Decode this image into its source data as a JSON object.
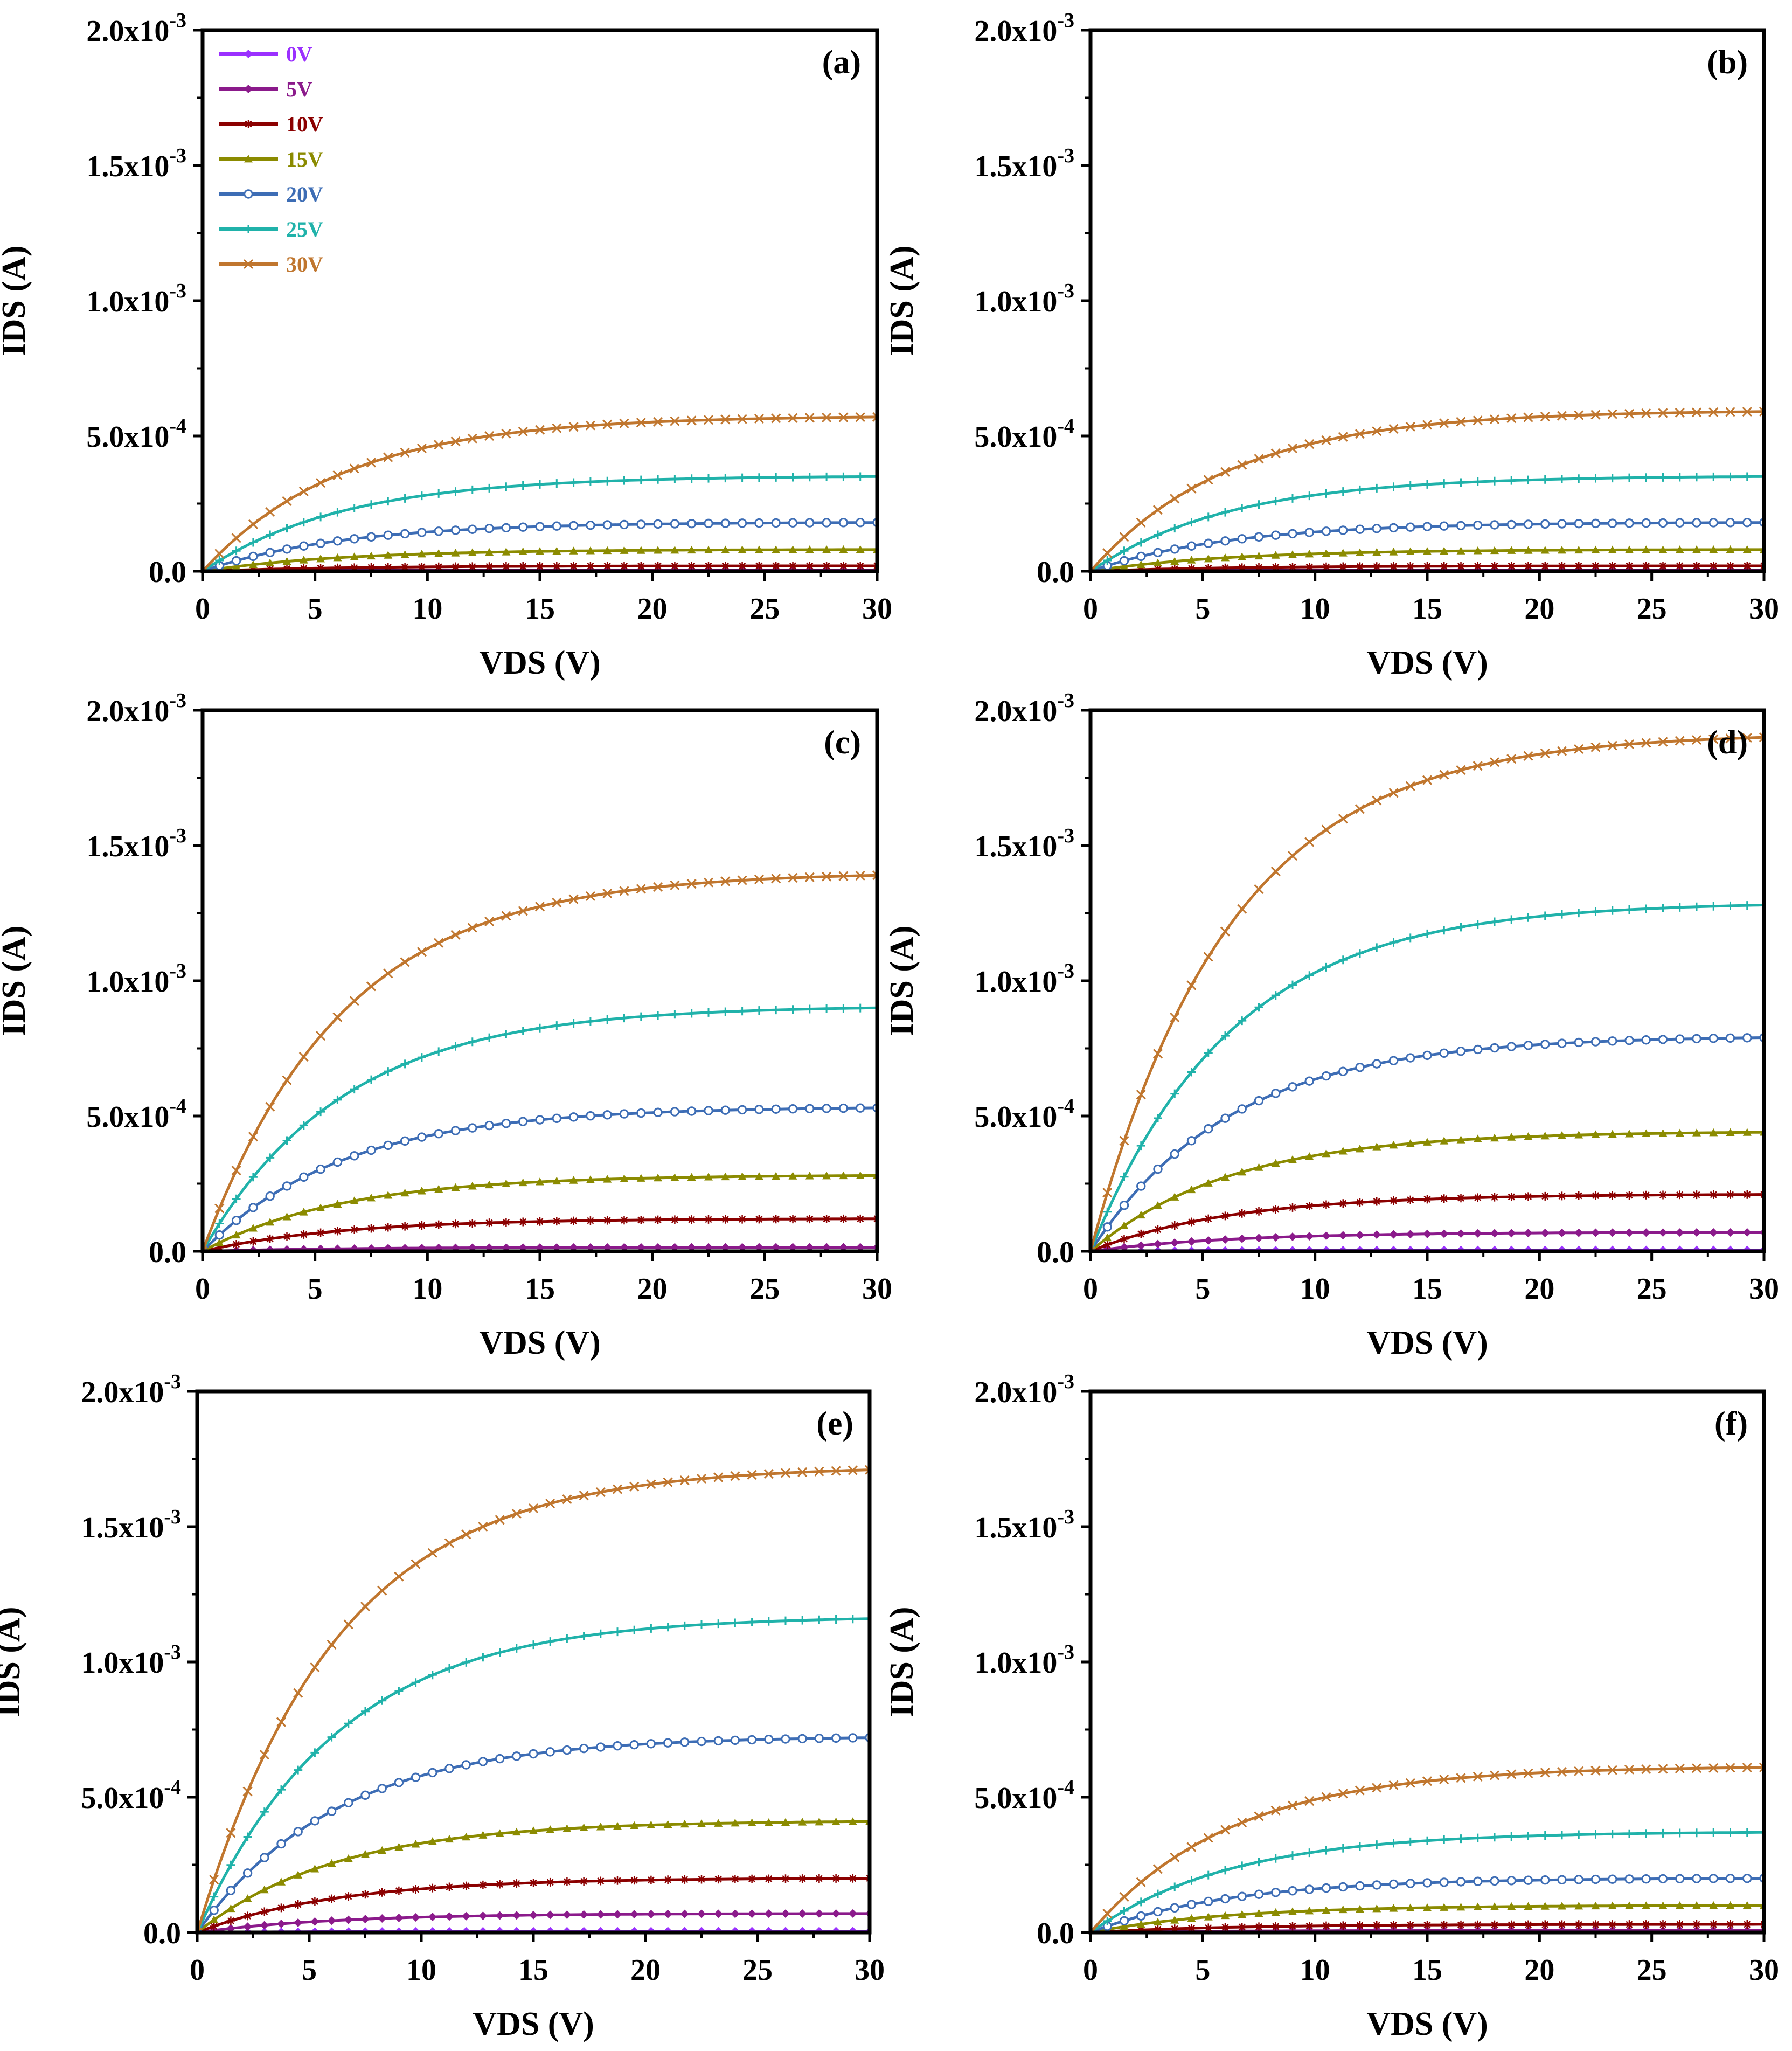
{
  "figure": {
    "series_names": [
      "0V",
      "5V",
      "10V",
      "15V",
      "20V",
      "25V",
      "30V"
    ],
    "series_colors": [
      "#9b30ff",
      "#8b1a8b",
      "#8b0000",
      "#8b8b00",
      "#3d6db5",
      "#20b2aa",
      "#c0762e"
    ],
    "series_markers": [
      "diamond",
      "diamond",
      "star",
      "triangle",
      "circle-open",
      "plus",
      "cross"
    ]
  },
  "chart_data": [
    {
      "type": "line",
      "panel_label": "(a)",
      "xlabel": "VDS (V)",
      "ylabel": "IDS (A)",
      "xlim": [
        0,
        30
      ],
      "ylim": [
        0,
        0.002
      ],
      "x_ticks": [
        "0",
        "5",
        "10",
        "15",
        "20",
        "25",
        "30"
      ],
      "y_ticks": [
        {
          "mant": "0.0",
          "exp": ""
        },
        {
          "mant": "5.0x10",
          "exp": "-4"
        },
        {
          "mant": "1.0x10",
          "exp": "-3"
        },
        {
          "mant": "1.5x10",
          "exp": "-3"
        },
        {
          "mant": "2.0x10",
          "exp": "-3"
        }
      ],
      "legend": true,
      "series": [
        {
          "name": "0V",
          "saturation": 0.0
        },
        {
          "name": "5V",
          "saturation": 5e-06
        },
        {
          "name": "10V",
          "saturation": 2e-05
        },
        {
          "name": "15V",
          "saturation": 8e-05
        },
        {
          "name": "20V",
          "saturation": 0.00018
        },
        {
          "name": "25V",
          "saturation": 0.00035
        },
        {
          "name": "30V",
          "saturation": 0.00057
        }
      ]
    },
    {
      "type": "line",
      "panel_label": "(b)",
      "xlabel": "VDS (V)",
      "ylabel": "IDS (A)",
      "xlim": [
        0,
        30
      ],
      "ylim": [
        0,
        0.002
      ],
      "x_ticks": [
        "0",
        "5",
        "10",
        "15",
        "20",
        "25",
        "30"
      ],
      "y_ticks": [
        {
          "mant": "0.0",
          "exp": ""
        },
        {
          "mant": "5.0x10",
          "exp": "-4"
        },
        {
          "mant": "1.0x10",
          "exp": "-3"
        },
        {
          "mant": "1.5x10",
          "exp": "-3"
        },
        {
          "mant": "2.0x10",
          "exp": "-3"
        }
      ],
      "legend": false,
      "series": [
        {
          "name": "0V",
          "saturation": 0.0
        },
        {
          "name": "5V",
          "saturation": 5e-06
        },
        {
          "name": "10V",
          "saturation": 2e-05
        },
        {
          "name": "15V",
          "saturation": 8e-05
        },
        {
          "name": "20V",
          "saturation": 0.00018
        },
        {
          "name": "25V",
          "saturation": 0.00035
        },
        {
          "name": "30V",
          "saturation": 0.00059
        }
      ]
    },
    {
      "type": "line",
      "panel_label": "(c)",
      "xlabel": "VDS (V)",
      "ylabel": "IDS (A)",
      "xlim": [
        0,
        30
      ],
      "ylim": [
        0,
        0.002
      ],
      "x_ticks": [
        "0",
        "5",
        "10",
        "15",
        "20",
        "25",
        "30"
      ],
      "y_ticks": [
        {
          "mant": "0.0",
          "exp": ""
        },
        {
          "mant": "5.0x10",
          "exp": "-4"
        },
        {
          "mant": "1.0x10",
          "exp": "-3"
        },
        {
          "mant": "1.5x10",
          "exp": "-3"
        },
        {
          "mant": "2.0x10",
          "exp": "-3"
        }
      ],
      "legend": false,
      "series": [
        {
          "name": "0V",
          "saturation": 0.0
        },
        {
          "name": "5V",
          "saturation": 1.5e-05
        },
        {
          "name": "10V",
          "saturation": 0.00012
        },
        {
          "name": "15V",
          "saturation": 0.00028
        },
        {
          "name": "20V",
          "saturation": 0.00053
        },
        {
          "name": "25V",
          "saturation": 0.0009
        },
        {
          "name": "30V",
          "saturation": 0.00139
        }
      ]
    },
    {
      "type": "line",
      "panel_label": "(d)",
      "xlabel": "VDS (V)",
      "ylabel": "IDS (A)",
      "xlim": [
        0,
        30
      ],
      "ylim": [
        0,
        0.002
      ],
      "x_ticks": [
        "0",
        "5",
        "10",
        "15",
        "20",
        "25",
        "30"
      ],
      "y_ticks": [
        {
          "mant": "0.0",
          "exp": ""
        },
        {
          "mant": "5.0x10",
          "exp": "-4"
        },
        {
          "mant": "1.0x10",
          "exp": "-3"
        },
        {
          "mant": "1.5x10",
          "exp": "-3"
        },
        {
          "mant": "2.0x10",
          "exp": "-3"
        }
      ],
      "legend": false,
      "series": [
        {
          "name": "0V",
          "saturation": 5e-06
        },
        {
          "name": "5V",
          "saturation": 7e-05
        },
        {
          "name": "10V",
          "saturation": 0.00021
        },
        {
          "name": "15V",
          "saturation": 0.00044
        },
        {
          "name": "20V",
          "saturation": 0.00079
        },
        {
          "name": "25V",
          "saturation": 0.00128
        },
        {
          "name": "30V",
          "saturation": 0.0019
        }
      ]
    },
    {
      "type": "line",
      "panel_label": "(e)",
      "xlabel": "VDS (V)",
      "ylabel": "IDS (A)",
      "xlim": [
        0,
        30
      ],
      "ylim": [
        0,
        0.002
      ],
      "x_ticks": [
        "0",
        "5",
        "10",
        "15",
        "20",
        "25",
        "30"
      ],
      "y_ticks": [
        {
          "mant": "0.0",
          "exp": ""
        },
        {
          "mant": "5.0x10",
          "exp": "-4"
        },
        {
          "mant": "1.0x10",
          "exp": "-3"
        },
        {
          "mant": "1.5x10",
          "exp": "-3"
        },
        {
          "mant": "2.0x10",
          "exp": "-3"
        }
      ],
      "legend": false,
      "series": [
        {
          "name": "0V",
          "saturation": 5e-06
        },
        {
          "name": "5V",
          "saturation": 7e-05
        },
        {
          "name": "10V",
          "saturation": 0.0002
        },
        {
          "name": "15V",
          "saturation": 0.00041
        },
        {
          "name": "20V",
          "saturation": 0.00072
        },
        {
          "name": "25V",
          "saturation": 0.00116
        },
        {
          "name": "30V",
          "saturation": 0.00171
        }
      ]
    },
    {
      "type": "line",
      "panel_label": "(f)",
      "xlabel": "VDS (V)",
      "ylabel": "IDS (A)",
      "xlim": [
        0,
        30
      ],
      "ylim": [
        0,
        0.002
      ],
      "x_ticks": [
        "0",
        "5",
        "10",
        "15",
        "20",
        "25",
        "30"
      ],
      "y_ticks": [
        {
          "mant": "0.0",
          "exp": ""
        },
        {
          "mant": "5.0x10",
          "exp": "-4"
        },
        {
          "mant": "1.0x10",
          "exp": "-3"
        },
        {
          "mant": "1.5x10",
          "exp": "-3"
        },
        {
          "mant": "2.0x10",
          "exp": "-3"
        }
      ],
      "legend": false,
      "series": [
        {
          "name": "0V",
          "saturation": 0.0
        },
        {
          "name": "5V",
          "saturation": 8e-06
        },
        {
          "name": "10V",
          "saturation": 3e-05
        },
        {
          "name": "15V",
          "saturation": 0.0001
        },
        {
          "name": "20V",
          "saturation": 0.0002
        },
        {
          "name": "25V",
          "saturation": 0.00037
        },
        {
          "name": "30V",
          "saturation": 0.00061
        }
      ]
    }
  ]
}
